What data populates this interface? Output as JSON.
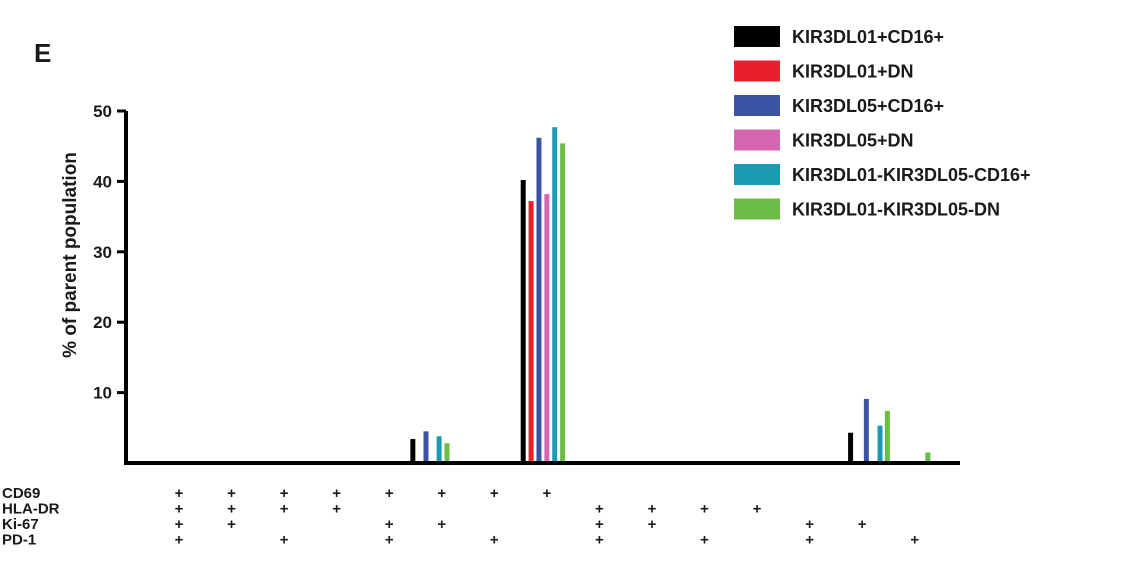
{
  "panel_label": "E",
  "chart_data": {
    "type": "bar",
    "title": "",
    "xlabel": "",
    "ylabel": "% of parent population",
    "ylim": [
      0,
      50
    ],
    "yticks": [
      10,
      20,
      30,
      40,
      50
    ],
    "legend_position": "top-right",
    "series": [
      {
        "name": "KIR3DL01+CD16+",
        "color": "#000000"
      },
      {
        "name": "KIR3DL01+DN",
        "color": "#e8202a"
      },
      {
        "name": "KIR3DL05+CD16+",
        "color": "#3a53a4"
      },
      {
        "name": "KIR3DL05+DN",
        "color": "#d467b0"
      },
      {
        "name": "KIR3DL01-KIR3DL05-CD16+",
        "color": "#1b9bb3"
      },
      {
        "name": "KIR3DL01-KIR3DL05-DN",
        "color": "#6bbd45"
      }
    ],
    "group_count": 15,
    "marker_rows": [
      "CD69",
      "HLA-DR",
      "Ki-67",
      "PD-1"
    ],
    "marker_columns": [
      {
        "x": 0,
        "marks": [
          "CD69",
          "HLA-DR",
          "Ki-67",
          "PD-1"
        ]
      },
      {
        "x": 1,
        "marks": [
          "CD69",
          "HLA-DR",
          "Ki-67"
        ]
      },
      {
        "x": 2,
        "marks": [
          "CD69",
          "HLA-DR",
          "PD-1"
        ]
      },
      {
        "x": 3,
        "marks": [
          "CD69",
          "HLA-DR"
        ]
      },
      {
        "x": 4,
        "marks": [
          "CD69",
          "Ki-67",
          "PD-1"
        ]
      },
      {
        "x": 5,
        "marks": [
          "CD69",
          "Ki-67"
        ]
      },
      {
        "x": 6,
        "marks": [
          "CD69",
          "PD-1"
        ]
      },
      {
        "x": 7,
        "marks": [
          "CD69"
        ]
      },
      {
        "x": 8,
        "marks": [
          "HLA-DR",
          "Ki-67",
          "PD-1"
        ]
      },
      {
        "x": 9,
        "marks": [
          "HLA-DR",
          "Ki-67"
        ]
      },
      {
        "x": 10,
        "marks": [
          "HLA-DR",
          "PD-1"
        ]
      },
      {
        "x": 11,
        "marks": [
          "HLA-DR"
        ]
      },
      {
        "x": 12,
        "marks": [
          "Ki-67",
          "PD-1"
        ]
      },
      {
        "x": 13,
        "marks": [
          "Ki-67"
        ]
      },
      {
        "x": 14,
        "marks": [
          "PD-1"
        ]
      }
    ],
    "bars": [
      {
        "group": 4.45,
        "series": 0,
        "value": 3.4
      },
      {
        "group": 4.7,
        "series": 2,
        "value": 4.5
      },
      {
        "group": 4.95,
        "series": 4,
        "value": 3.8
      },
      {
        "group": 5.1,
        "series": 5,
        "value": 2.8
      },
      {
        "group": 6.55,
        "series": 0,
        "value": 40.2
      },
      {
        "group": 6.7,
        "series": 1,
        "value": 37.2
      },
      {
        "group": 6.85,
        "series": 2,
        "value": 46.2
      },
      {
        "group": 7.0,
        "series": 3,
        "value": 38.2
      },
      {
        "group": 7.15,
        "series": 4,
        "value": 47.7
      },
      {
        "group": 7.3,
        "series": 5,
        "value": 45.4
      },
      {
        "group": 12.78,
        "series": 0,
        "value": 4.3
      },
      {
        "group": 13.08,
        "series": 2,
        "value": 9.1
      },
      {
        "group": 13.34,
        "series": 4,
        "value": 5.3
      },
      {
        "group": 13.48,
        "series": 5,
        "value": 7.4
      },
      {
        "group": 14.25,
        "series": 5,
        "value": 1.5
      }
    ]
  }
}
